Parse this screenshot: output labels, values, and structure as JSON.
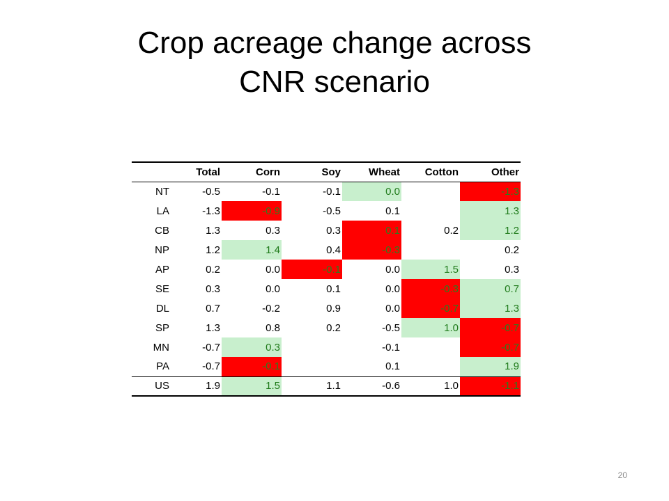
{
  "slide": {
    "title_line1": "Crop acreage change across",
    "title_line2": "CNR scenario",
    "page_number": "20"
  },
  "table": {
    "columns": [
      "",
      "Total",
      "Corn",
      "Soy",
      "Wheat",
      "Cotton",
      "Other"
    ],
    "rows": [
      {
        "label": "NT",
        "cells": [
          {
            "v": "-0.5",
            "hl": ""
          },
          {
            "v": "-0.1",
            "hl": ""
          },
          {
            "v": "-0.1",
            "hl": ""
          },
          {
            "v": "0.0",
            "hl": "green"
          },
          {
            "v": "",
            "hl": ""
          },
          {
            "v": "-1.3",
            "hl": "red"
          }
        ]
      },
      {
        "label": "LA",
        "cells": [
          {
            "v": "-1.3",
            "hl": ""
          },
          {
            "v": "-0.9",
            "hl": "red"
          },
          {
            "v": "-0.5",
            "hl": ""
          },
          {
            "v": "0.1",
            "hl": ""
          },
          {
            "v": "",
            "hl": ""
          },
          {
            "v": "1.3",
            "hl": "green"
          }
        ]
      },
      {
        "label": "CB",
        "cells": [
          {
            "v": "1.3",
            "hl": ""
          },
          {
            "v": "0.3",
            "hl": ""
          },
          {
            "v": "0.3",
            "hl": ""
          },
          {
            "v": "0.1",
            "hl": "red"
          },
          {
            "v": "0.2",
            "hl": ""
          },
          {
            "v": "1.2",
            "hl": "green"
          }
        ]
      },
      {
        "label": "NP",
        "cells": [
          {
            "v": "1.2",
            "hl": ""
          },
          {
            "v": "1.4",
            "hl": "green"
          },
          {
            "v": "0.4",
            "hl": ""
          },
          {
            "v": "-0.3",
            "hl": "red"
          },
          {
            "v": "",
            "hl": ""
          },
          {
            "v": "0.2",
            "hl": ""
          }
        ]
      },
      {
        "label": "AP",
        "cells": [
          {
            "v": "0.2",
            "hl": ""
          },
          {
            "v": "0.0",
            "hl": ""
          },
          {
            "v": "-0.1",
            "hl": "red"
          },
          {
            "v": "0.0",
            "hl": ""
          },
          {
            "v": "1.5",
            "hl": "green"
          },
          {
            "v": "0.3",
            "hl": ""
          }
        ]
      },
      {
        "label": "SE",
        "cells": [
          {
            "v": "0.3",
            "hl": ""
          },
          {
            "v": "0.0",
            "hl": ""
          },
          {
            "v": "0.1",
            "hl": ""
          },
          {
            "v": "0.0",
            "hl": ""
          },
          {
            "v": "-0.3",
            "hl": "red"
          },
          {
            "v": "0.7",
            "hl": "green"
          }
        ]
      },
      {
        "label": "DL",
        "cells": [
          {
            "v": "0.7",
            "hl": ""
          },
          {
            "v": "-0.2",
            "hl": ""
          },
          {
            "v": "0.9",
            "hl": ""
          },
          {
            "v": "0.0",
            "hl": ""
          },
          {
            "v": "-0.7",
            "hl": "red"
          },
          {
            "v": "1.3",
            "hl": "green"
          }
        ]
      },
      {
        "label": "SP",
        "cells": [
          {
            "v": "1.3",
            "hl": ""
          },
          {
            "v": "0.8",
            "hl": ""
          },
          {
            "v": "0.2",
            "hl": ""
          },
          {
            "v": "-0.5",
            "hl": ""
          },
          {
            "v": "1.0",
            "hl": "green"
          },
          {
            "v": "-0.7",
            "hl": "red"
          }
        ]
      },
      {
        "label": "MN",
        "cells": [
          {
            "v": "-0.7",
            "hl": ""
          },
          {
            "v": "0.3",
            "hl": "green"
          },
          {
            "v": "",
            "hl": ""
          },
          {
            "v": "-0.1",
            "hl": ""
          },
          {
            "v": "",
            "hl": ""
          },
          {
            "v": "-0.7",
            "hl": "red"
          }
        ]
      },
      {
        "label": "PA",
        "cells": [
          {
            "v": "-0.7",
            "hl": ""
          },
          {
            "v": "-0.1",
            "hl": "red"
          },
          {
            "v": "",
            "hl": ""
          },
          {
            "v": "0.1",
            "hl": ""
          },
          {
            "v": "",
            "hl": ""
          },
          {
            "v": "1.9",
            "hl": "green"
          }
        ]
      },
      {
        "label": "US",
        "cells": [
          {
            "v": "1.9",
            "hl": ""
          },
          {
            "v": "1.5",
            "hl": "green"
          },
          {
            "v": "1.1",
            "hl": ""
          },
          {
            "v": "-0.6",
            "hl": ""
          },
          {
            "v": "1.0",
            "hl": ""
          },
          {
            "v": "-1.1",
            "hl": "red"
          }
        ]
      }
    ]
  },
  "colors": {
    "highlight_red": "#ff0000",
    "highlight_green": "#c8efcd",
    "green_text": "#1f7a1a"
  }
}
